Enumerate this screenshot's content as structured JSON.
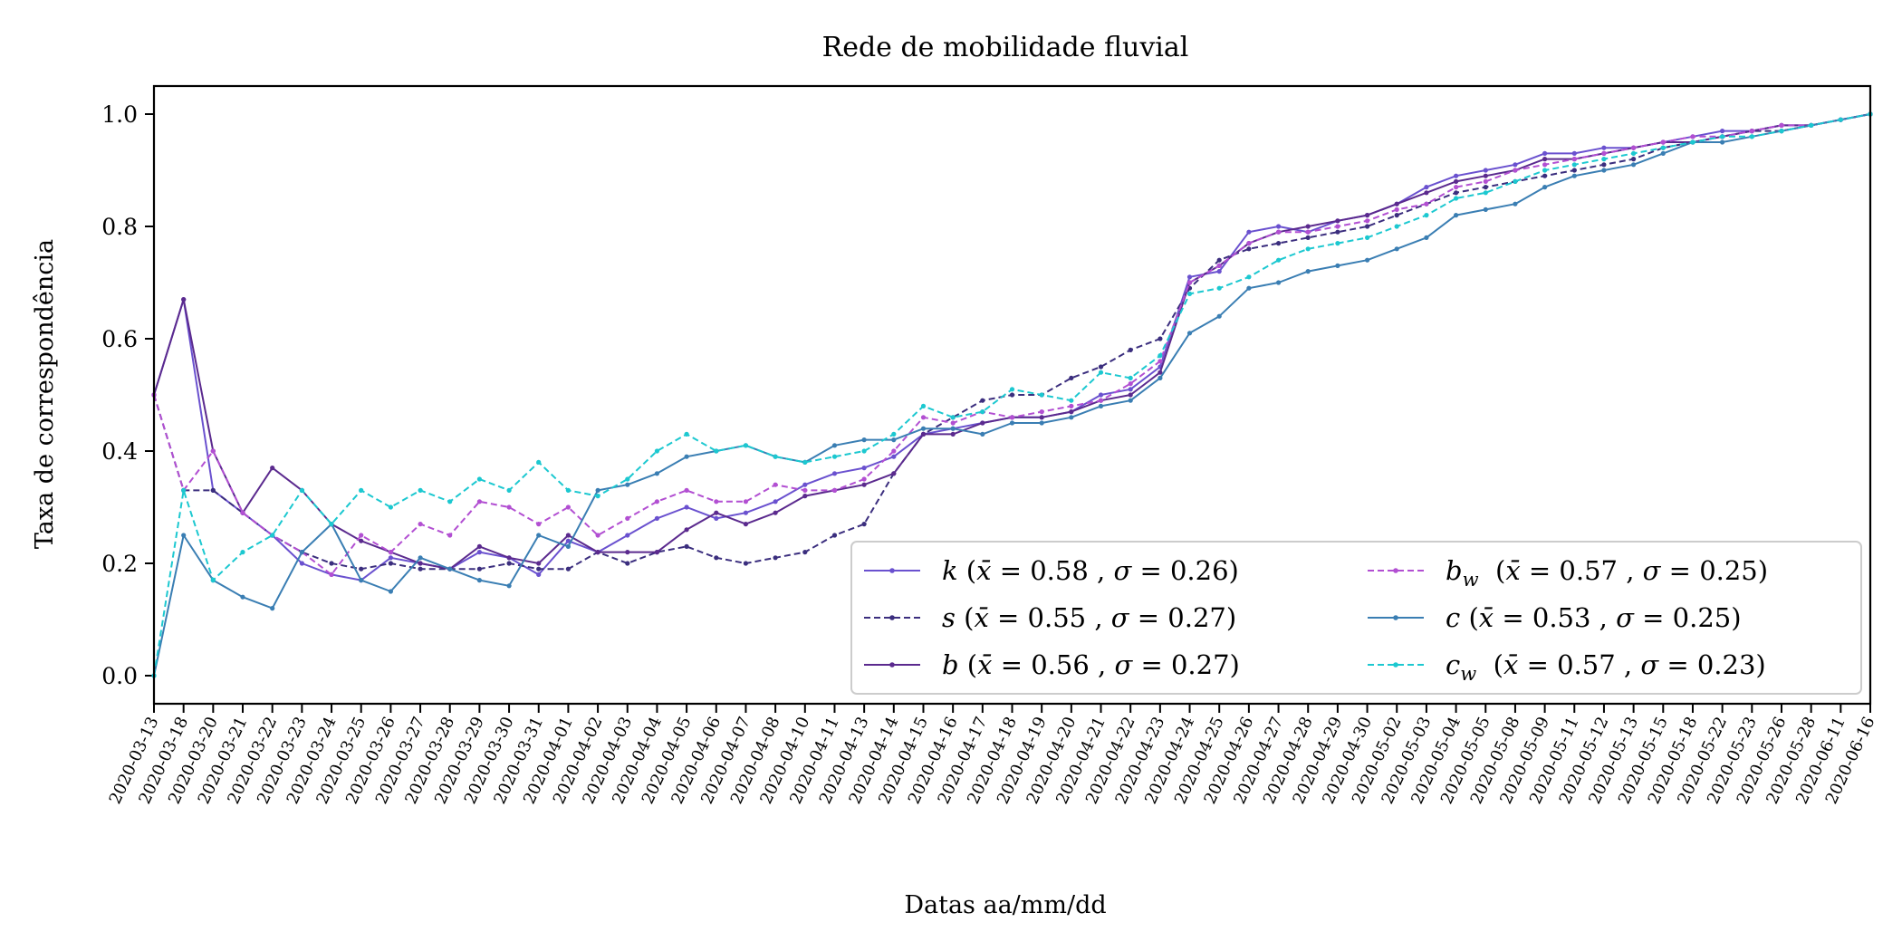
{
  "chart_data": {
    "type": "line",
    "title": "Rede de mobilidade fluvial",
    "xlabel": "Datas aa/mm/dd",
    "ylabel": "Taxa de correspondência",
    "ylim": [
      -0.05,
      1.05
    ],
    "yticks": [
      "0.0",
      "0.2",
      "0.4",
      "0.6",
      "0.8",
      "1.0"
    ],
    "grid": false,
    "legend_position": "lower-right",
    "categories": [
      "2020-03-13",
      "2020-03-18",
      "2020-03-20",
      "2020-03-21",
      "2020-03-22",
      "2020-03-23",
      "2020-03-24",
      "2020-03-25",
      "2020-03-26",
      "2020-03-27",
      "2020-03-28",
      "2020-03-29",
      "2020-03-30",
      "2020-03-31",
      "2020-04-01",
      "2020-04-02",
      "2020-04-03",
      "2020-04-04",
      "2020-04-05",
      "2020-04-06",
      "2020-04-07",
      "2020-04-08",
      "2020-04-10",
      "2020-04-11",
      "2020-04-13",
      "2020-04-14",
      "2020-04-15",
      "2020-04-16",
      "2020-04-17",
      "2020-04-18",
      "2020-04-19",
      "2020-04-20",
      "2020-04-21",
      "2020-04-22",
      "2020-04-23",
      "2020-04-24",
      "2020-04-25",
      "2020-04-26",
      "2020-04-27",
      "2020-04-28",
      "2020-04-29",
      "2020-04-30",
      "2020-05-02",
      "2020-05-03",
      "2020-05-04",
      "2020-05-05",
      "2020-05-08",
      "2020-05-09",
      "2020-05-11",
      "2020-05-12",
      "2020-05-13",
      "2020-05-15",
      "2020-05-18",
      "2020-05-22",
      "2020-05-23",
      "2020-05-26",
      "2020-05-28",
      "2020-06-11",
      "2020-06-16"
    ],
    "series": [
      {
        "legend": "k (x̄ = 0.58 , σ = 0.26)",
        "symbol": "k",
        "sub": "",
        "mean": "0.58",
        "sd": "0.26",
        "color": "#6a51cf",
        "dashed": false,
        "values": [
          0.5,
          0.67,
          0.33,
          0.29,
          0.25,
          0.2,
          0.18,
          0.17,
          0.21,
          0.2,
          0.19,
          0.22,
          0.21,
          0.18,
          0.24,
          0.22,
          0.25,
          0.28,
          0.3,
          0.28,
          0.29,
          0.31,
          0.34,
          0.36,
          0.37,
          0.39,
          0.43,
          0.44,
          0.45,
          0.46,
          0.46,
          0.47,
          0.5,
          0.51,
          0.55,
          0.71,
          0.72,
          0.79,
          0.8,
          0.79,
          0.81,
          0.82,
          0.84,
          0.87,
          0.89,
          0.9,
          0.91,
          0.93,
          0.93,
          0.94,
          0.94,
          0.95,
          0.96,
          0.97,
          0.97,
          0.98,
          0.98,
          0.99,
          1.0
        ]
      },
      {
        "legend": "s (x̄ = 0.55 , σ = 0.27)",
        "symbol": "s",
        "sub": "",
        "mean": "0.55",
        "sd": "0.27",
        "color": "#3b2e7e",
        "dashed": true,
        "values": [
          0.5,
          0.33,
          0.33,
          0.29,
          0.25,
          0.22,
          0.2,
          0.19,
          0.2,
          0.19,
          0.19,
          0.19,
          0.2,
          0.19,
          0.19,
          0.22,
          0.2,
          0.22,
          0.23,
          0.21,
          0.2,
          0.21,
          0.22,
          0.25,
          0.27,
          0.36,
          0.43,
          0.46,
          0.49,
          0.5,
          0.5,
          0.53,
          0.55,
          0.58,
          0.6,
          0.69,
          0.74,
          0.76,
          0.77,
          0.78,
          0.79,
          0.8,
          0.82,
          0.84,
          0.86,
          0.87,
          0.88,
          0.89,
          0.9,
          0.91,
          0.92,
          0.94,
          0.95,
          0.96,
          0.97,
          0.97,
          0.98,
          0.99,
          1.0
        ]
      },
      {
        "legend": "b (x̄ = 0.56 , σ = 0.27)",
        "symbol": "b",
        "sub": "",
        "mean": "0.56",
        "sd": "0.27",
        "color": "#5b2a8e",
        "dashed": false,
        "values": [
          0.5,
          0.67,
          0.4,
          0.29,
          0.37,
          0.33,
          0.27,
          0.24,
          0.22,
          0.2,
          0.19,
          0.23,
          0.21,
          0.2,
          0.25,
          0.22,
          0.22,
          0.22,
          0.26,
          0.29,
          0.27,
          0.29,
          0.32,
          0.33,
          0.34,
          0.36,
          0.43,
          0.43,
          0.45,
          0.46,
          0.46,
          0.47,
          0.49,
          0.5,
          0.54,
          0.7,
          0.73,
          0.77,
          0.79,
          0.8,
          0.81,
          0.82,
          0.84,
          0.86,
          0.88,
          0.89,
          0.9,
          0.92,
          0.92,
          0.93,
          0.94,
          0.95,
          0.95,
          0.96,
          0.97,
          0.98,
          0.98,
          0.99,
          1.0
        ]
      },
      {
        "legend": "b_w (x̄ = 0.57 , σ = 0.25)",
        "symbol": "b",
        "sub": "w",
        "mean": "0.57",
        "sd": "0.25",
        "color": "#b24fd2",
        "dashed": true,
        "values": [
          0.5,
          0.33,
          0.4,
          0.29,
          0.25,
          0.22,
          0.18,
          0.25,
          0.22,
          0.27,
          0.25,
          0.31,
          0.3,
          0.27,
          0.3,
          0.25,
          0.28,
          0.31,
          0.33,
          0.31,
          0.31,
          0.34,
          0.33,
          0.33,
          0.35,
          0.4,
          0.46,
          0.45,
          0.47,
          0.46,
          0.47,
          0.48,
          0.49,
          0.52,
          0.56,
          0.7,
          0.73,
          0.77,
          0.79,
          0.79,
          0.8,
          0.81,
          0.83,
          0.84,
          0.87,
          0.88,
          0.9,
          0.91,
          0.92,
          0.93,
          0.94,
          0.95,
          0.96,
          0.96,
          0.97,
          0.98,
          0.98,
          0.99,
          1.0
        ]
      },
      {
        "legend": "c (x̄ = 0.53 , σ = 0.25)",
        "symbol": "c",
        "sub": "",
        "mean": "0.53",
        "sd": "0.25",
        "color": "#3a7eb3",
        "dashed": false,
        "values": [
          0.0,
          0.25,
          0.17,
          0.14,
          0.12,
          0.22,
          0.27,
          0.17,
          0.15,
          0.21,
          0.19,
          0.17,
          0.16,
          0.25,
          0.23,
          0.33,
          0.34,
          0.36,
          0.39,
          0.4,
          0.41,
          0.39,
          0.38,
          0.41,
          0.42,
          0.42,
          0.44,
          0.44,
          0.43,
          0.45,
          0.45,
          0.46,
          0.48,
          0.49,
          0.53,
          0.61,
          0.64,
          0.69,
          0.7,
          0.72,
          0.73,
          0.74,
          0.76,
          0.78,
          0.82,
          0.83,
          0.84,
          0.87,
          0.89,
          0.9,
          0.91,
          0.93,
          0.95,
          0.95,
          0.96,
          0.97,
          0.98,
          0.99,
          1.0
        ]
      },
      {
        "legend": "c_w (x̄ = 0.57 , σ = 0.23)",
        "symbol": "c",
        "sub": "w",
        "mean": "0.57",
        "sd": "0.23",
        "color": "#1cc8d0",
        "dashed": true,
        "values": [
          0.0,
          0.33,
          0.17,
          0.22,
          0.25,
          0.33,
          0.27,
          0.33,
          0.3,
          0.33,
          0.31,
          0.35,
          0.33,
          0.38,
          0.33,
          0.32,
          0.35,
          0.4,
          0.43,
          0.4,
          0.41,
          0.39,
          0.38,
          0.39,
          0.4,
          0.43,
          0.48,
          0.46,
          0.47,
          0.51,
          0.5,
          0.49,
          0.54,
          0.53,
          0.57,
          0.68,
          0.69,
          0.71,
          0.74,
          0.76,
          0.77,
          0.78,
          0.8,
          0.82,
          0.85,
          0.86,
          0.88,
          0.9,
          0.91,
          0.92,
          0.93,
          0.94,
          0.95,
          0.96,
          0.96,
          0.97,
          0.98,
          0.99,
          1.0
        ]
      }
    ]
  }
}
